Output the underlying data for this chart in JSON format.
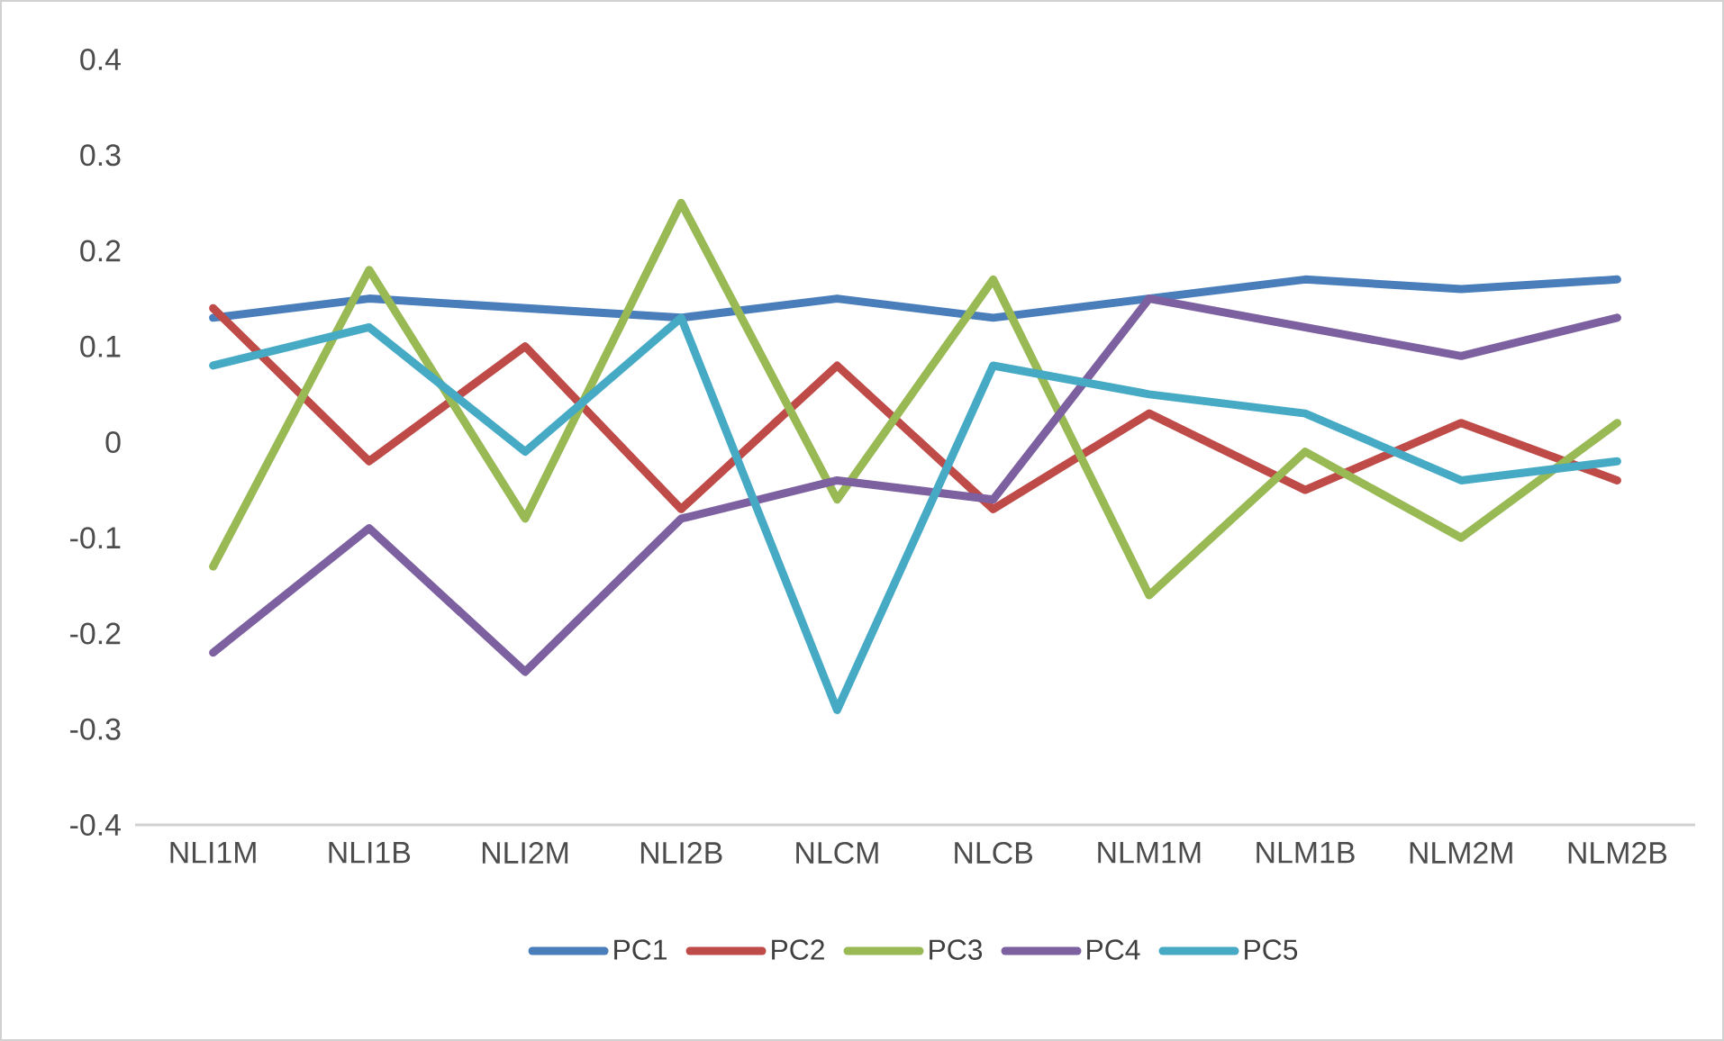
{
  "chart_data": {
    "type": "line",
    "categories": [
      "NLI1M",
      "NLI1B",
      "NLI2M",
      "NLI2B",
      "NLCM",
      "NLCB",
      "NLM1M",
      "NLM1B",
      "NLM2M",
      "NLM2B"
    ],
    "series": [
      {
        "name": "PC1",
        "color": "#4a7ebb",
        "values": [
          0.13,
          0.15,
          0.14,
          0.13,
          0.15,
          0.13,
          0.15,
          0.17,
          0.16,
          0.17
        ]
      },
      {
        "name": "PC2",
        "color": "#be4b48",
        "values": [
          0.14,
          -0.02,
          0.1,
          -0.07,
          0.08,
          -0.07,
          0.03,
          -0.05,
          0.02,
          -0.04
        ]
      },
      {
        "name": "PC3",
        "color": "#98b954",
        "values": [
          -0.13,
          0.18,
          -0.08,
          0.25,
          -0.06,
          0.17,
          -0.16,
          -0.01,
          -0.1,
          0.02
        ]
      },
      {
        "name": "PC4",
        "color": "#7d60a0",
        "values": [
          -0.22,
          -0.09,
          -0.24,
          -0.08,
          -0.04,
          -0.06,
          0.15,
          0.12,
          0.09,
          0.13
        ]
      },
      {
        "name": "PC5",
        "color": "#46aac5",
        "values": [
          0.08,
          0.12,
          -0.01,
          0.13,
          -0.28,
          0.08,
          0.05,
          0.03,
          -0.04,
          -0.02
        ]
      }
    ],
    "ylim": [
      -0.4,
      0.4
    ],
    "yticks": [
      -0.4,
      -0.3,
      -0.2,
      -0.1,
      0,
      0.1,
      0.2,
      0.3,
      0.4
    ],
    "legend": "bottom",
    "grid": false,
    "marker": "none",
    "line_style": "solid"
  }
}
